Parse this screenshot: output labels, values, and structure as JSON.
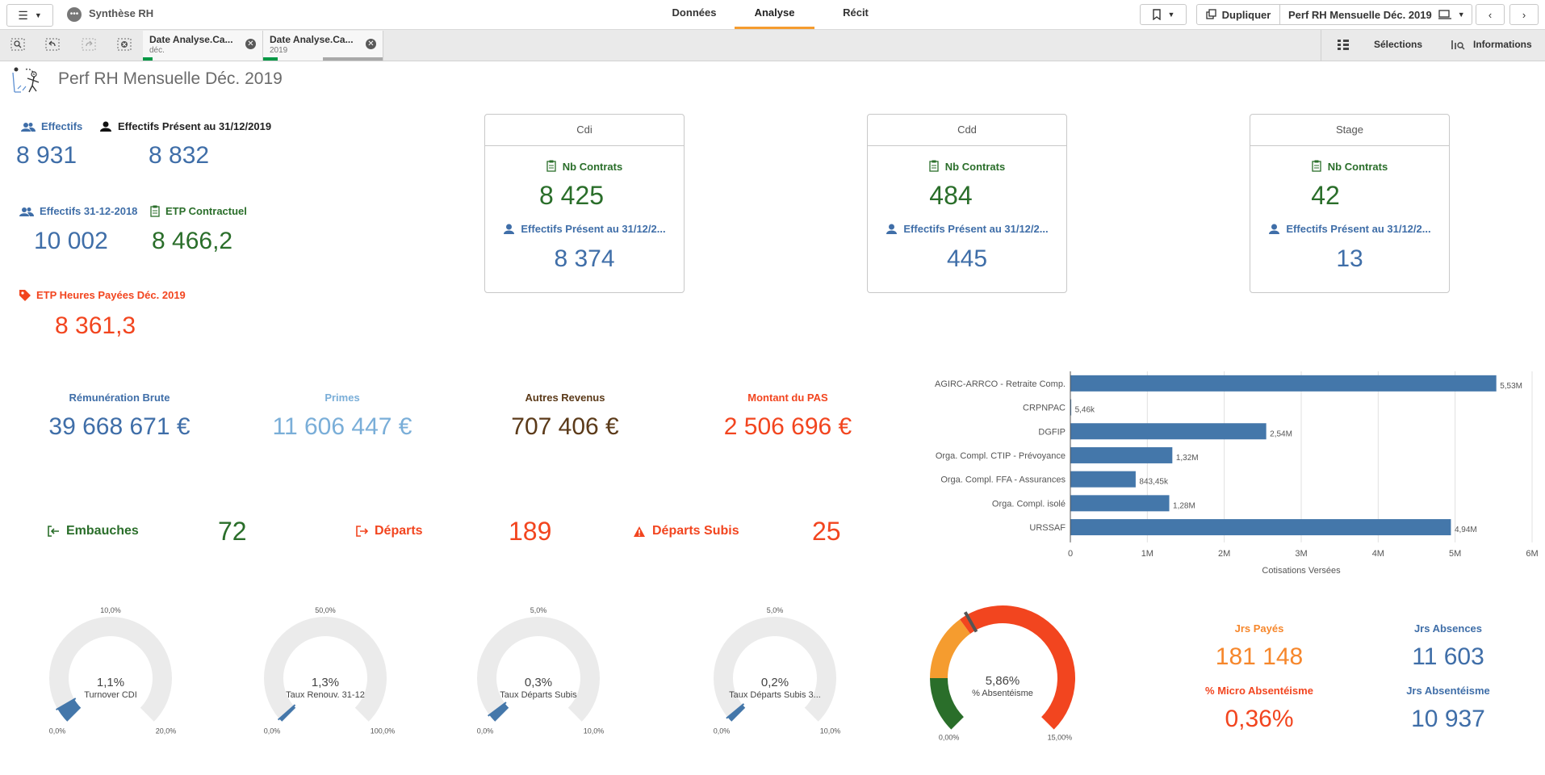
{
  "app": {
    "title": "Synthèse RH"
  },
  "nav": {
    "tabs": [
      "Données",
      "Analyse",
      "Récit"
    ],
    "active": "Analyse"
  },
  "toolbar": {
    "duplicate_label": "Dupliquer",
    "sheet_name": "Perf RH Mensuelle Déc. 2019"
  },
  "selections": {
    "chips": [
      {
        "title": "Date Analyse.Ca...",
        "value": "déc."
      },
      {
        "title": "Date Analyse.Ca...",
        "value": "2019"
      }
    ],
    "selections_label": "Sélections",
    "info_label": "Informations"
  },
  "sheet": {
    "title": "Perf RH Mensuelle Déc. 2019"
  },
  "kpis": {
    "effectifs": {
      "label": "Effectifs",
      "value": "8 931"
    },
    "present": {
      "label": "Effectifs Présent au 31/12/2019",
      "value": "8 832"
    },
    "eff2018": {
      "label": "Effectifs 31-12-2018",
      "value": "10 002"
    },
    "etp": {
      "label": "ETP Contractuel",
      "value": "8 466,2"
    },
    "etp_heures": {
      "label": "ETP Heures Payées Déc. 2019",
      "value": "8 361,3"
    }
  },
  "cards": [
    {
      "header": "Cdi",
      "contracts_label": "Nb Contrats",
      "contracts": "8 425",
      "present_label": "Effectifs Présent au 31/12/2...",
      "present": "8 374"
    },
    {
      "header": "Cdd",
      "contracts_label": "Nb Contrats",
      "contracts": "484",
      "present_label": "Effectifs Présent au 31/12/2...",
      "present": "445"
    },
    {
      "header": "Stage",
      "contracts_label": "Nb Contrats",
      "contracts": "42",
      "present_label": "Effectifs Présent au 31/12/2...",
      "present": "13"
    }
  ],
  "pay": [
    {
      "label": "Rémunération Brute",
      "value": "39 668 671 €",
      "color": "#3f6ea8"
    },
    {
      "label": "Primes",
      "value": "11 606 447 €",
      "color": "#7aaed8"
    },
    {
      "label": "Autres Revenus",
      "value": "707 406 €",
      "color": "#5b3a19"
    },
    {
      "label": "Montant du PAS",
      "value": "2 506 696 €",
      "color": "#f2451f"
    }
  ],
  "moves": {
    "embauches": {
      "label": "Embauches",
      "value": "72"
    },
    "departs": {
      "label": "Départs",
      "value": "189"
    },
    "subis": {
      "label": "Départs Subis",
      "value": "25"
    }
  },
  "chart_data": {
    "type": "bar",
    "orientation": "horizontal",
    "categories": [
      "AGIRC-ARRCO - Retraite Comp.",
      "CRPNPAC",
      "DGFIP",
      "Orga. Compl. CTIP - Prévoyance",
      "Orga. Compl. FFA - Assurances",
      "Orga. Compl. isolé",
      "URSSAF"
    ],
    "values": [
      5530000,
      5460,
      2540000,
      1320000,
      843450,
      1280000,
      4940000
    ],
    "data_labels": [
      "5,53M",
      "5,46k",
      "2,54M",
      "1,32M",
      "843,45k",
      "1,28M",
      "4,94M"
    ],
    "xlim": [
      0,
      6000000
    ],
    "xticks": [
      "0",
      "1M",
      "2M",
      "3M",
      "4M",
      "5M",
      "6M"
    ],
    "xlabel": "Cotisations Versées",
    "color": "#4477aa"
  },
  "gauges": [
    {
      "label": "Turnover CDI",
      "value_text": "1,1%",
      "value": 1.1,
      "max": 20,
      "min_label": "0,0%",
      "max_label": "20,0%",
      "mid_label": "10,0%"
    },
    {
      "label": "Taux Renouv. 31-12",
      "value_text": "1,3%",
      "value": 1.3,
      "max": 100,
      "min_label": "0,0%",
      "max_label": "100,0%",
      "mid_label": "50,0%"
    },
    {
      "label": "Taux Départs Subis",
      "value_text": "0,3%",
      "value": 0.3,
      "max": 10,
      "min_label": "0,0%",
      "max_label": "10,0%",
      "mid_label": "5,0%"
    },
    {
      "label": "Taux Départs Subis 3...",
      "value_text": "0,2%",
      "value": 0.2,
      "max": 10,
      "min_label": "0,0%",
      "max_label": "10,0%",
      "mid_label": "5,0%"
    }
  ],
  "absence_gauge": {
    "label": "% Absentéisme",
    "value_text": "5,86%",
    "value": 5.86,
    "max": 15,
    "min_label": "0,00%",
    "max_label": "15,00%",
    "bands": [
      {
        "to": 2.5,
        "color": "#2a6e2a"
      },
      {
        "to": 5.5,
        "color": "#f59c2f"
      },
      {
        "to": 15,
        "color": "#f2451f"
      }
    ]
  },
  "absences": {
    "jrs_payes": {
      "label": "Jrs Payés",
      "value": "181 148"
    },
    "jrs_absences": {
      "label": "Jrs Absences",
      "value": "11 603"
    },
    "micro": {
      "label": "% Micro Absentéisme",
      "value": "0,36%"
    },
    "jrs_absenteisme": {
      "label": "Jrs Absentéisme",
      "value": "10 937"
    }
  }
}
